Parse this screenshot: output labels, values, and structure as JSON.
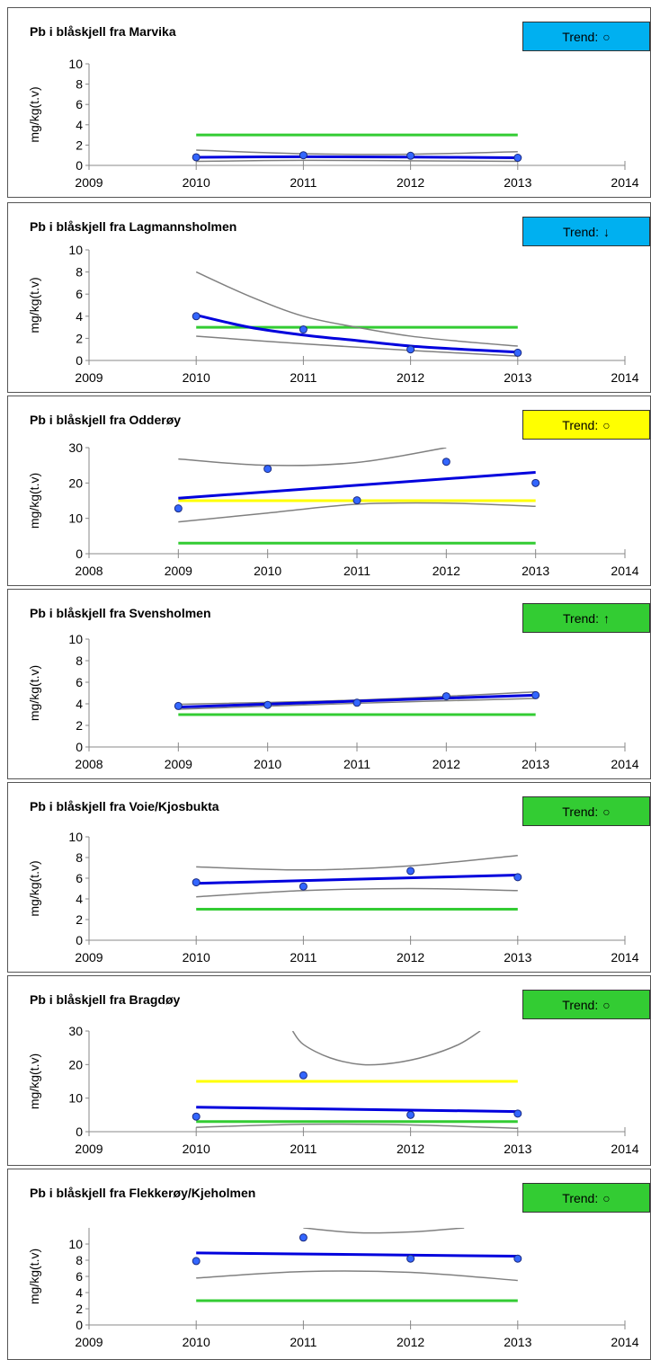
{
  "colors": {
    "cyan": "#00B0F0",
    "yellow": "#FFFF00",
    "green": "#33CC33",
    "trendline": "#0000DD",
    "point": "#3366FF",
    "ci": "#808080"
  },
  "chart_data": [
    {
      "type": "line",
      "title": "Pb i blåskjell fra Marvika",
      "ylabel": "mg/kg(t.v)",
      "ylim": [
        0,
        10
      ],
      "yticks": [
        0,
        2,
        4,
        6,
        8,
        10
      ],
      "xlim": [
        2009,
        2014
      ],
      "xticks": [
        2009,
        2010,
        2011,
        2012,
        2013,
        2014
      ],
      "trend_label": "Trend:",
      "trend_symbol": "○",
      "trend_symbol_name": "circle-icon",
      "trend_color": "#00B0F0",
      "points": [
        [
          2010,
          0.8
        ],
        [
          2011,
          1.0
        ],
        [
          2012,
          0.95
        ],
        [
          2013,
          0.75
        ]
      ],
      "fit": [
        [
          2010,
          0.8
        ],
        [
          2011,
          0.85
        ],
        [
          2012,
          0.82
        ],
        [
          2013,
          0.75
        ]
      ],
      "ci_upper": [
        [
          2010,
          1.5
        ],
        [
          2011,
          1.15
        ],
        [
          2012,
          1.1
        ],
        [
          2013,
          1.35
        ]
      ],
      "ci_lower": [
        [
          2010,
          0.4
        ],
        [
          2011,
          0.5
        ],
        [
          2012,
          0.45
        ],
        [
          2013,
          0.4
        ]
      ],
      "levels": [
        {
          "y": 3,
          "color": "#33CC33",
          "x": [
            2010,
            2013
          ]
        }
      ]
    },
    {
      "type": "line",
      "title": "Pb i blåskjell fra Lagmannsholmen",
      "ylabel": "mg/kg(t.v)",
      "ylim": [
        0,
        10
      ],
      "yticks": [
        0,
        2,
        4,
        6,
        8,
        10
      ],
      "xlim": [
        2009,
        2014
      ],
      "xticks": [
        2009,
        2010,
        2011,
        2012,
        2013,
        2014
      ],
      "trend_label": "Trend:",
      "trend_symbol": "↓",
      "trend_symbol_name": "arrow-down-icon",
      "trend_color": "#00B0F0",
      "points": [
        [
          2010,
          4.0
        ],
        [
          2011,
          2.8
        ],
        [
          2012,
          1.0
        ],
        [
          2013,
          0.7
        ]
      ],
      "fit": [
        [
          2010,
          4.1
        ],
        [
          2010.5,
          3.0
        ],
        [
          2011,
          2.3
        ],
        [
          2011.5,
          1.8
        ],
        [
          2012,
          1.3
        ],
        [
          2012.5,
          1.0
        ],
        [
          2013,
          0.75
        ]
      ],
      "ci_upper": [
        [
          2010,
          8.0
        ],
        [
          2010.5,
          5.8
        ],
        [
          2011,
          4.0
        ],
        [
          2011.5,
          3.0
        ],
        [
          2012,
          2.2
        ],
        [
          2012.5,
          1.7
        ],
        [
          2013,
          1.3
        ]
      ],
      "ci_lower": [
        [
          2010,
          2.2
        ],
        [
          2011,
          1.5
        ],
        [
          2012,
          0.9
        ],
        [
          2013,
          0.4
        ]
      ],
      "levels": [
        {
          "y": 3,
          "color": "#33CC33",
          "x": [
            2010,
            2013
          ]
        }
      ]
    },
    {
      "type": "line",
      "title": "Pb i blåskjell fra Odderøy",
      "ylabel": "mg/kg(t.v)",
      "ylim": [
        0,
        30
      ],
      "yticks": [
        0,
        10,
        20,
        30
      ],
      "xlim": [
        2008,
        2014
      ],
      "xticks": [
        2008,
        2009,
        2010,
        2011,
        2012,
        2013,
        2014
      ],
      "trend_label": "Trend:",
      "trend_symbol": "○",
      "trend_symbol_name": "circle-icon",
      "trend_color": "#FFFF00",
      "points": [
        [
          2009,
          12.8
        ],
        [
          2010,
          24.0
        ],
        [
          2011,
          15.1
        ],
        [
          2012,
          26.0
        ],
        [
          2013,
          20.0
        ]
      ],
      "fit": [
        [
          2009,
          15.7
        ],
        [
          2013,
          23.0
        ]
      ],
      "ci_upper": [
        [
          2009,
          26.8
        ],
        [
          2010,
          25.0
        ],
        [
          2011,
          25.8
        ],
        [
          2012,
          30.0
        ]
      ],
      "ci_lower": [
        [
          2009,
          9.0
        ],
        [
          2010,
          11.5
        ],
        [
          2011,
          14.0
        ],
        [
          2012,
          14.3
        ],
        [
          2013,
          13.4
        ]
      ],
      "levels": [
        {
          "y": 15,
          "color": "#FFFF00",
          "x": [
            2009,
            2013
          ]
        },
        {
          "y": 3,
          "color": "#33CC33",
          "x": [
            2009,
            2013
          ]
        }
      ]
    },
    {
      "type": "line",
      "title": "Pb i blåskjell fra Svensholmen",
      "ylabel": "mg/kg(t.v)",
      "ylim": [
        0,
        10
      ],
      "yticks": [
        0,
        2,
        4,
        6,
        8,
        10
      ],
      "xlim": [
        2008,
        2014
      ],
      "xticks": [
        2008,
        2009,
        2010,
        2011,
        2012,
        2013,
        2014
      ],
      "trend_label": "Trend:",
      "trend_symbol": "↑",
      "trend_symbol_name": "arrow-up-icon",
      "trend_color": "#33CC33",
      "points": [
        [
          2009,
          3.8
        ],
        [
          2010,
          3.9
        ],
        [
          2011,
          4.1
        ],
        [
          2012,
          4.7
        ],
        [
          2013,
          4.8
        ]
      ],
      "fit": [
        [
          2009,
          3.7
        ],
        [
          2013,
          4.8
        ]
      ],
      "ci_upper": [
        [
          2009,
          3.95
        ],
        [
          2011,
          4.35
        ],
        [
          2013,
          5.1
        ]
      ],
      "ci_lower": [
        [
          2009,
          3.5
        ],
        [
          2011,
          4.05
        ],
        [
          2013,
          4.5
        ]
      ],
      "levels": [
        {
          "y": 3,
          "color": "#33CC33",
          "x": [
            2009,
            2013
          ]
        }
      ]
    },
    {
      "type": "line",
      "title": "Pb i blåskjell fra Voie/Kjosbukta",
      "ylabel": "mg/kg(t.v)",
      "ylim": [
        0,
        10
      ],
      "yticks": [
        0,
        2,
        4,
        6,
        8,
        10
      ],
      "xlim": [
        2009,
        2014
      ],
      "xticks": [
        2009,
        2010,
        2011,
        2012,
        2013,
        2014
      ],
      "trend_label": "Trend:",
      "trend_symbol": "○",
      "trend_symbol_name": "circle-icon",
      "trend_color": "#33CC33",
      "points": [
        [
          2010,
          5.6
        ],
        [
          2011,
          5.2
        ],
        [
          2012,
          6.7
        ],
        [
          2013,
          6.1
        ]
      ],
      "fit": [
        [
          2010,
          5.5
        ],
        [
          2013,
          6.3
        ]
      ],
      "ci_upper": [
        [
          2010,
          7.1
        ],
        [
          2011,
          6.8
        ],
        [
          2012,
          7.2
        ],
        [
          2013,
          8.2
        ]
      ],
      "ci_lower": [
        [
          2010,
          4.2
        ],
        [
          2011,
          4.8
        ],
        [
          2012,
          5.0
        ],
        [
          2013,
          4.8
        ]
      ],
      "levels": [
        {
          "y": 3,
          "color": "#33CC33",
          "x": [
            2010,
            2013
          ]
        }
      ]
    },
    {
      "type": "line",
      "title": "Pb i blåskjell fra Bragdøy",
      "ylabel": "mg/kg(t.v)",
      "ylim": [
        0,
        30
      ],
      "yticks": [
        0,
        10,
        20,
        30
      ],
      "xlim": [
        2009,
        2014
      ],
      "xticks": [
        2009,
        2010,
        2011,
        2012,
        2013,
        2014
      ],
      "trend_label": "Trend:",
      "trend_symbol": "○",
      "trend_symbol_name": "circle-icon",
      "trend_color": "#33CC33",
      "points": [
        [
          2010,
          4.5
        ],
        [
          2011,
          16.8
        ],
        [
          2012,
          5.0
        ],
        [
          2013,
          5.4
        ]
      ],
      "fit": [
        [
          2010,
          7.3
        ],
        [
          2013,
          6.0
        ]
      ],
      "ci_upper": [
        [
          2010.9,
          30.0
        ],
        [
          2011,
          26.0
        ],
        [
          2011.25,
          22.0
        ],
        [
          2011.55,
          20.0
        ],
        [
          2011.85,
          20.5
        ],
        [
          2012.15,
          22.5
        ],
        [
          2012.45,
          26.0
        ],
        [
          2012.65,
          30.0
        ]
      ],
      "ci_lower": [
        [
          2010,
          1.3
        ],
        [
          2011,
          2.2
        ],
        [
          2012,
          2.0
        ],
        [
          2013,
          1.0
        ]
      ],
      "levels": [
        {
          "y": 15,
          "color": "#FFFF00",
          "x": [
            2010,
            2013
          ]
        },
        {
          "y": 3,
          "color": "#33CC33",
          "x": [
            2010,
            2013
          ]
        }
      ]
    },
    {
      "type": "line",
      "title": "Pb i blåskjell fra Flekkerøy/Kjeholmen",
      "ylabel": "mg/kg(t.v)",
      "ylim": [
        0,
        12
      ],
      "yticks": [
        0,
        2,
        4,
        6,
        8,
        10
      ],
      "xlim": [
        2009,
        2014
      ],
      "xticks": [
        2009,
        2010,
        2011,
        2012,
        2013,
        2014
      ],
      "trend_label": "Trend:",
      "trend_symbol": "○",
      "trend_symbol_name": "circle-icon",
      "trend_color": "#33CC33",
      "points": [
        [
          2010,
          7.9
        ],
        [
          2011,
          10.8
        ],
        [
          2012,
          8.2
        ],
        [
          2013,
          8.2
        ]
      ],
      "fit": [
        [
          2010,
          8.9
        ],
        [
          2013,
          8.5
        ]
      ],
      "ci_upper": [
        [
          2011,
          12.0
        ],
        [
          2011.5,
          11.4
        ],
        [
          2012,
          11.5
        ],
        [
          2012.5,
          12.0
        ]
      ],
      "ci_lower": [
        [
          2010,
          5.8
        ],
        [
          2011,
          6.6
        ],
        [
          2012,
          6.5
        ],
        [
          2013,
          5.5
        ]
      ],
      "levels": [
        {
          "y": 3,
          "color": "#33CC33",
          "x": [
            2010,
            2013
          ]
        }
      ]
    }
  ]
}
